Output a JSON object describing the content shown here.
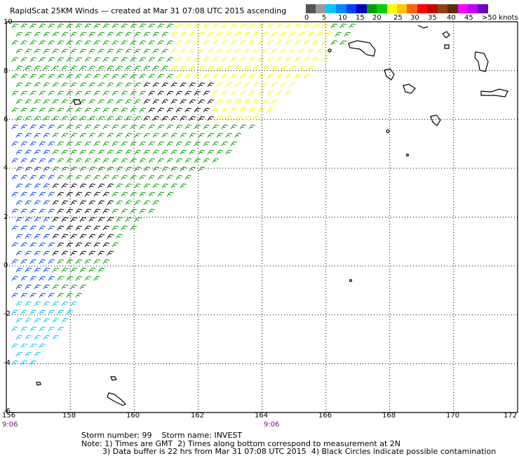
{
  "title": "RapidScat 25KM Winds — created at Mar 31 07:08 UTC 2015 ascending",
  "colorbar": {
    "colors": [
      "#555555",
      "#9a9a9a",
      "#00c8ff",
      "#0088ff",
      "#0040ff",
      "#0000c8",
      "#00a000",
      "#00d000",
      "#ffff00",
      "#ffc800",
      "#ff6400",
      "#ff0000",
      "#c80000",
      "#8b4513",
      "#5a2d0c",
      "#ff00ff",
      "#c000ff",
      "#7000c0"
    ],
    "labels": [
      "0",
      "5",
      "10",
      "15",
      "20",
      "25",
      "30",
      "35",
      "40",
      "45",
      ">50 knots"
    ]
  },
  "axes": {
    "x_labels": [
      "156",
      "158",
      "160",
      "162",
      "164",
      "166",
      "168",
      "170",
      "172"
    ],
    "y_labels": [
      "10",
      "8",
      "6",
      "4",
      "2",
      "0",
      "-2",
      "-4",
      "-6"
    ],
    "x_range": [
      156,
      172
    ],
    "y_range": [
      -6,
      10
    ]
  },
  "time_labels": [
    "9:06",
    "9:06"
  ],
  "footer": {
    "storm": "Storm number: 99    Storm name: INVEST",
    "note1": "Note: 1) Times are GMT  2) Times along bottom correspond to measurement at 2N",
    "note2": "3) Data buffer is 22 hrs from Mar 31 07:08 UTC 2015  4) Black Circles indicate possible contamination"
  }
}
